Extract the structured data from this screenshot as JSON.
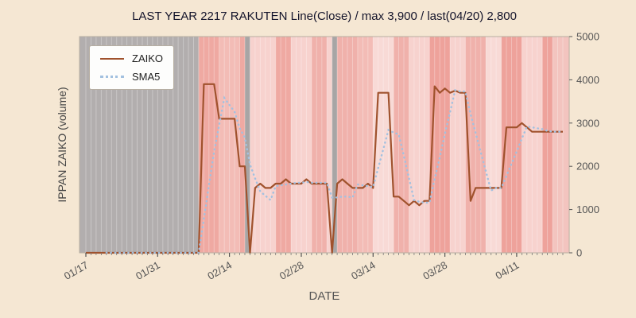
{
  "figure": {
    "background": "#f5e7d3",
    "plot_background": "#f6d9d5"
  },
  "chart_data": {
    "type": "line",
    "title": "LAST YEAR 2217 RAKUTEN Line(Close) / max 3,900 / last(04/20) 2,800",
    "xlabel": "DATE",
    "ylabel": "IPPAN ZAIKO (volume)",
    "ylim": [
      0,
      5000
    ],
    "y_ticks": [
      0,
      1000,
      2000,
      3000,
      4000,
      5000
    ],
    "y_tick_labels": [
      "0",
      "1000",
      "2000",
      "3000",
      "4000",
      "5000"
    ],
    "x_tick_labels": [
      "01/17",
      "01/31",
      "02/14",
      "02/28",
      "03/14",
      "03/28",
      "04/11"
    ],
    "x_tick_indices": [
      0,
      14,
      28,
      42,
      56,
      70,
      84
    ],
    "grid": "daily vertical white stripes",
    "legend": {
      "position": "upper-left",
      "entries": [
        {
          "label": "ZAIKO",
          "color": "#a0522d",
          "style": "solid"
        },
        {
          "label": "SMA5",
          "color": "#a3c1e0",
          "style": "dotted"
        }
      ]
    },
    "dates": [
      "01/17",
      "01/18",
      "01/19",
      "01/20",
      "01/21",
      "01/22",
      "01/23",
      "01/24",
      "01/25",
      "01/26",
      "01/27",
      "01/28",
      "01/29",
      "01/30",
      "01/31",
      "02/01",
      "02/02",
      "02/03",
      "02/04",
      "02/05",
      "02/06",
      "02/07",
      "02/08",
      "02/09",
      "02/10",
      "02/11",
      "02/12",
      "02/13",
      "02/14",
      "02/15",
      "02/16",
      "02/17",
      "02/18",
      "02/19",
      "02/20",
      "02/21",
      "02/22",
      "02/23",
      "02/24",
      "02/25",
      "02/26",
      "02/27",
      "02/28",
      "03/01",
      "03/02",
      "03/03",
      "03/04",
      "03/05",
      "03/06",
      "03/07",
      "03/08",
      "03/09",
      "03/10",
      "03/11",
      "03/12",
      "03/13",
      "03/14",
      "03/15",
      "03/16",
      "03/17",
      "03/18",
      "03/19",
      "03/20",
      "03/21",
      "03/22",
      "03/23",
      "03/24",
      "03/25",
      "03/26",
      "03/27",
      "03/28",
      "03/29",
      "03/30",
      "03/31",
      "04/01",
      "04/02",
      "04/03",
      "04/04",
      "04/05",
      "04/06",
      "04/07",
      "04/08",
      "04/09",
      "04/10",
      "04/11",
      "04/12",
      "04/13",
      "04/14",
      "04/15",
      "04/16",
      "04/17",
      "04/18",
      "04/19",
      "04/20"
    ],
    "series": [
      {
        "name": "ZAIKO",
        "color": "#a0522d",
        "style": "solid",
        "values": [
          0,
          0,
          0,
          0,
          0,
          0,
          0,
          0,
          0,
          0,
          0,
          0,
          0,
          0,
          0,
          0,
          0,
          0,
          0,
          0,
          0,
          0,
          0,
          3900,
          3900,
          3900,
          3100,
          3100,
          3100,
          3100,
          2000,
          2000,
          0,
          1500,
          1600,
          1500,
          1500,
          1600,
          1600,
          1700,
          1600,
          1600,
          1600,
          1700,
          1600,
          1600,
          1600,
          1600,
          0,
          1600,
          1700,
          1600,
          1500,
          1500,
          1500,
          1600,
          1500,
          3700,
          3700,
          3700,
          1300,
          1300,
          1200,
          1100,
          1200,
          1100,
          1200,
          1200,
          3850,
          3700,
          3800,
          3700,
          3750,
          3700,
          3700,
          1200,
          1500,
          1500,
          1500,
          1500,
          1500,
          1500,
          2900,
          2900,
          2900,
          3000,
          2900,
          2800,
          2800,
          2800,
          2800,
          2800,
          2800,
          2800
        ]
      },
      {
        "name": "SMA5",
        "color": "#a3c1e0",
        "style": "dotted",
        "derived": "5-day trailing moving average of ZAIKO"
      }
    ],
    "background_bands": [
      {
        "from": "01/17",
        "to": "02/08",
        "color": "#b2aeae"
      },
      {
        "from": "02/08",
        "to": "02/12",
        "color": "#efa9a2"
      },
      {
        "from": "02/12",
        "to": "02/16",
        "color": "#f3bcb6"
      },
      {
        "from": "02/16",
        "to": "02/17",
        "color": "#efa9a2"
      },
      {
        "from": "02/17",
        "to": "02/18",
        "color": "#a8a5a5"
      },
      {
        "from": "02/18",
        "to": "02/23",
        "color": "#f7d2ce"
      },
      {
        "from": "02/23",
        "to": "02/26",
        "color": "#efa9a2"
      },
      {
        "from": "02/26",
        "to": "03/02",
        "color": "#f7d2ce"
      },
      {
        "from": "03/02",
        "to": "03/05",
        "color": "#f0b1ab"
      },
      {
        "from": "03/05",
        "to": "03/06",
        "color": "#f7d2ce"
      },
      {
        "from": "03/06",
        "to": "03/07",
        "color": "#a8a5a5"
      },
      {
        "from": "03/07",
        "to": "03/11",
        "color": "#f0b1ab"
      },
      {
        "from": "03/11",
        "to": "03/14",
        "color": "#f3bcb6"
      },
      {
        "from": "03/14",
        "to": "03/18",
        "color": "#f8dad6"
      },
      {
        "from": "03/18",
        "to": "03/21",
        "color": "#f0b1ab"
      },
      {
        "from": "03/21",
        "to": "03/25",
        "color": "#f7d2ce"
      },
      {
        "from": "03/25",
        "to": "03/29",
        "color": "#eea29b"
      },
      {
        "from": "03/29",
        "to": "04/01",
        "color": "#f7d2ce"
      },
      {
        "from": "04/01",
        "to": "04/05",
        "color": "#f0b1ab"
      },
      {
        "from": "04/05",
        "to": "04/08",
        "color": "#f8dad6"
      },
      {
        "from": "04/08",
        "to": "04/12",
        "color": "#eea29b"
      },
      {
        "from": "04/12",
        "to": "04/16",
        "color": "#f7d2ce"
      },
      {
        "from": "04/16",
        "to": "04/18",
        "color": "#eea29b"
      },
      {
        "from": "04/18",
        "to": "04/20",
        "color": "#f3c4bf"
      }
    ]
  }
}
